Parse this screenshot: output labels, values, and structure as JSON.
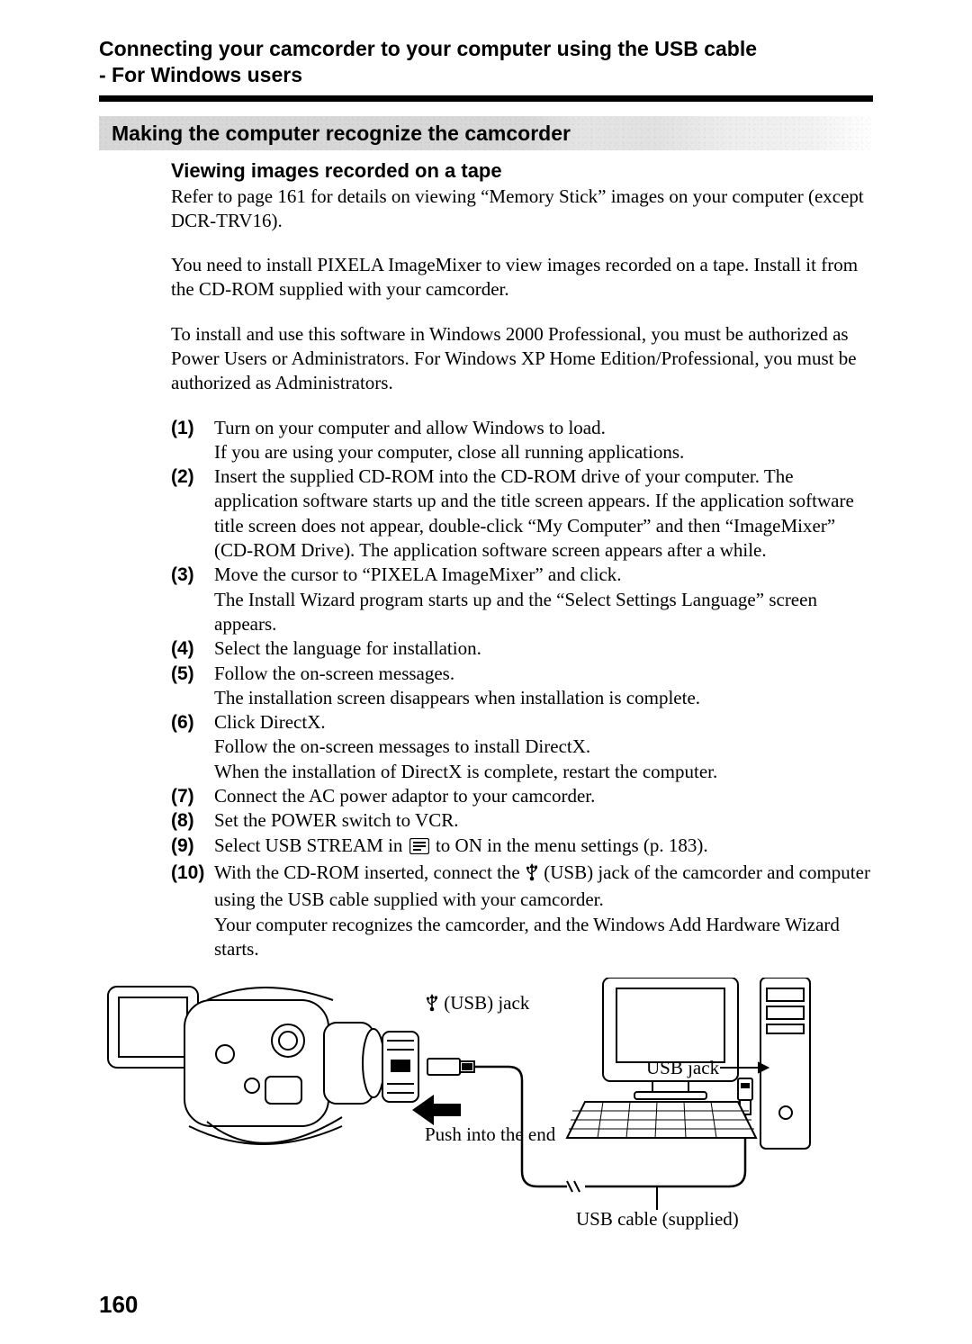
{
  "header": {
    "title_line1": "Connecting your camcorder to your computer using the USB cable",
    "title_line2": "- For Windows users"
  },
  "banner": {
    "text": "Making the computer recognize the camcorder",
    "bg_gradient_from": "#d8d8d8",
    "bg_gradient_to": "#ffffff",
    "font_size": 23
  },
  "section": {
    "sub_heading": "Viewing images recorded on a tape",
    "p1": "Refer to page 161 for details on viewing “Memory Stick” images on your computer (except DCR-TRV16).",
    "p2": "You need to install PIXELA ImageMixer to view images recorded on a tape. Install it from the CD-ROM supplied with your camcorder.",
    "p3": "To install and use this software in Windows 2000 Professional, you must be authorized as Power Users or Administrators. For Windows XP Home Edition/Professional, you must be authorized as Administrators."
  },
  "steps": [
    {
      "num": "(1)",
      "text": "Turn on your computer and allow Windows to load.\nIf you are using your computer, close all running applications."
    },
    {
      "num": "(2)",
      "text": "Insert the supplied CD-ROM into the CD-ROM drive of your computer. The application software starts up and the title screen appears. If the application software title screen does not appear, double-click “My Computer” and then “ImageMixer” (CD-ROM Drive). The application software screen appears after a while."
    },
    {
      "num": "(3)",
      "text": "Move the cursor to “PIXELA ImageMixer” and click.\nThe Install Wizard program starts up and the “Select Settings Language” screen appears."
    },
    {
      "num": "(4)",
      "text": "Select the language for installation."
    },
    {
      "num": "(5)",
      "text": "Follow the on-screen messages.\nThe installation screen disappears when installation is complete."
    },
    {
      "num": "(6)",
      "text": "Click DirectX.\nFollow the on-screen messages to install DirectX.\nWhen the installation of DirectX is complete, restart the computer."
    },
    {
      "num": "(7)",
      "text": "Connect the AC power adaptor to your camcorder."
    },
    {
      "num": "(8)",
      "text": "Set the POWER switch to VCR."
    },
    {
      "num": "(9)",
      "text_pre": "Select USB STREAM in ",
      "text_post": " to ON in the menu settings (p. 183).",
      "has_icon": true,
      "icon_name": "setup-menu-icon"
    },
    {
      "num": "(10)",
      "text_pre": "With the CD-ROM inserted, connect the ",
      "text_mid": " (USB) jack of the camcorder and computer using the USB cable supplied with your camcorder.\nYour computer recognizes the camcorder, and the Windows Add Hardware Wizard starts.",
      "has_usb_icon": true,
      "icon_name": "usb-trident-icon"
    }
  ],
  "figure": {
    "labels": {
      "usb_jack_cam": "(USB) jack",
      "push_end": "Push into the end",
      "usb_jack_pc": "USB jack",
      "cable": "USB cable (supplied)"
    }
  },
  "page_number": "160",
  "colors": {
    "text": "#000000",
    "background": "#ffffff",
    "rule": "#000000"
  },
  "typography": {
    "body_font": "Times New Roman",
    "heading_font": "Arial",
    "body_size_pt": 16,
    "heading_size_pt": 17
  }
}
